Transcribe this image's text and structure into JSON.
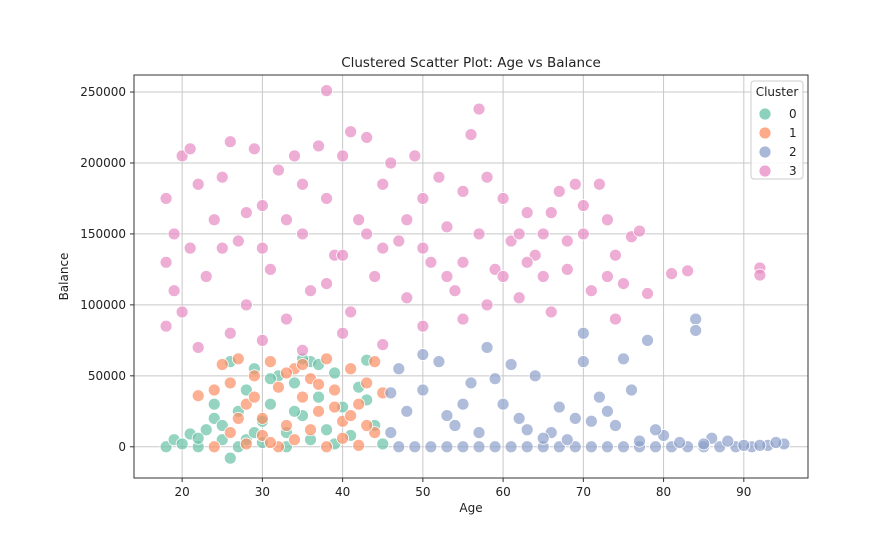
{
  "chart_data": {
    "type": "scatter",
    "title": "Clustered Scatter Plot: Age vs Balance",
    "xlabel": "Age",
    "ylabel": "Balance",
    "xlim": [
      14,
      98
    ],
    "ylim": [
      -22000,
      262000
    ],
    "x_ticks": [
      20,
      30,
      40,
      50,
      60,
      70,
      80,
      90
    ],
    "x_tick_labels": [
      "20",
      "30",
      "40",
      "50",
      "60",
      "70",
      "80",
      "90"
    ],
    "y_ticks": [
      0,
      50000,
      100000,
      150000,
      200000,
      250000
    ],
    "y_tick_labels": [
      "0",
      "50000",
      "100000",
      "150000",
      "200000",
      "250000"
    ],
    "grid": true,
    "legend": {
      "title": "Cluster",
      "placement": "top-right",
      "entries": [
        "0",
        "1",
        "2",
        "3"
      ]
    },
    "series": [
      {
        "name": "0",
        "color": "#66c2a5",
        "points": [
          [
            18,
            0
          ],
          [
            19,
            5000
          ],
          [
            20,
            2000
          ],
          [
            21,
            9000
          ],
          [
            22,
            0
          ],
          [
            23,
            12000
          ],
          [
            24,
            20000
          ],
          [
            25,
            15000
          ],
          [
            26,
            60000
          ],
          [
            26,
            -8000
          ],
          [
            27,
            25000
          ],
          [
            28,
            40000
          ],
          [
            28,
            5000
          ],
          [
            29,
            55000
          ],
          [
            30,
            18000
          ],
          [
            31,
            30000
          ],
          [
            32,
            50000
          ],
          [
            33,
            10000
          ],
          [
            34,
            45000
          ],
          [
            35,
            22000
          ],
          [
            36,
            60000
          ],
          [
            37,
            35000
          ],
          [
            38,
            12000
          ],
          [
            39,
            52000
          ],
          [
            40,
            28000
          ],
          [
            41,
            8000
          ],
          [
            42,
            42000
          ],
          [
            43,
            61000
          ],
          [
            44,
            15000
          ],
          [
            25,
            5000
          ],
          [
            27,
            0
          ],
          [
            30,
            3000
          ],
          [
            33,
            0
          ],
          [
            24,
            30000
          ],
          [
            29,
            10000
          ],
          [
            36,
            5000
          ],
          [
            39,
            2000
          ],
          [
            22,
            6000
          ],
          [
            35,
            62000
          ],
          [
            31,
            48000
          ],
          [
            34,
            25000
          ],
          [
            37,
            58000
          ],
          [
            43,
            33000
          ],
          [
            45,
            2000
          ]
        ]
      },
      {
        "name": "1",
        "color": "#fc8d62",
        "points": [
          [
            22,
            36000
          ],
          [
            24,
            40000
          ],
          [
            25,
            58000
          ],
          [
            26,
            45000
          ],
          [
            27,
            62000
          ],
          [
            28,
            30000
          ],
          [
            29,
            50000
          ],
          [
            30,
            20000
          ],
          [
            31,
            60000
          ],
          [
            32,
            42000
          ],
          [
            33,
            15000
          ],
          [
            34,
            55000
          ],
          [
            35,
            35000
          ],
          [
            36,
            48000
          ],
          [
            37,
            25000
          ],
          [
            38,
            62000
          ],
          [
            39,
            40000
          ],
          [
            40,
            18000
          ],
          [
            41,
            55000
          ],
          [
            42,
            30000
          ],
          [
            43,
            45000
          ],
          [
            44,
            60000
          ],
          [
            45,
            38000
          ],
          [
            26,
            10000
          ],
          [
            28,
            2000
          ],
          [
            30,
            8000
          ],
          [
            32,
            0
          ],
          [
            34,
            5000
          ],
          [
            36,
            12000
          ],
          [
            38,
            0
          ],
          [
            40,
            6000
          ],
          [
            42,
            1000
          ],
          [
            44,
            10000
          ],
          [
            29,
            35000
          ],
          [
            33,
            52000
          ],
          [
            37,
            44000
          ],
          [
            41,
            22000
          ],
          [
            27,
            20000
          ],
          [
            35,
            58000
          ],
          [
            39,
            28000
          ],
          [
            43,
            15000
          ],
          [
            24,
            0
          ],
          [
            31,
            3000
          ]
        ]
      },
      {
        "name": "2",
        "color": "#8da0cb",
        "points": [
          [
            47,
            0
          ],
          [
            49,
            0
          ],
          [
            51,
            0
          ],
          [
            53,
            0
          ],
          [
            55,
            0
          ],
          [
            57,
            0
          ],
          [
            59,
            0
          ],
          [
            61,
            0
          ],
          [
            63,
            0
          ],
          [
            65,
            0
          ],
          [
            67,
            0
          ],
          [
            69,
            0
          ],
          [
            71,
            0
          ],
          [
            73,
            0
          ],
          [
            75,
            0
          ],
          [
            77,
            0
          ],
          [
            79,
            0
          ],
          [
            81,
            0
          ],
          [
            83,
            0
          ],
          [
            85,
            0
          ],
          [
            87,
            0
          ],
          [
            89,
            0
          ],
          [
            91,
            0
          ],
          [
            93,
            1000
          ],
          [
            95,
            2000
          ],
          [
            46,
            10000
          ],
          [
            48,
            25000
          ],
          [
            50,
            40000
          ],
          [
            52,
            60000
          ],
          [
            54,
            15000
          ],
          [
            56,
            45000
          ],
          [
            58,
            70000
          ],
          [
            60,
            30000
          ],
          [
            62,
            20000
          ],
          [
            64,
            50000
          ],
          [
            66,
            10000
          ],
          [
            68,
            5000
          ],
          [
            70,
            80000
          ],
          [
            72,
            35000
          ],
          [
            74,
            15000
          ],
          [
            76,
            40000
          ],
          [
            78,
            75000
          ],
          [
            84,
            90000
          ],
          [
            84,
            82000
          ],
          [
            70,
            60000
          ],
          [
            73,
            25000
          ],
          [
            80,
            8000
          ],
          [
            82,
            3000
          ],
          [
            86,
            6000
          ],
          [
            88,
            4000
          ],
          [
            47,
            55000
          ],
          [
            50,
            65000
          ],
          [
            55,
            30000
          ],
          [
            57,
            10000
          ],
          [
            61,
            58000
          ],
          [
            65,
            6000
          ],
          [
            69,
            20000
          ],
          [
            75,
            62000
          ],
          [
            79,
            12000
          ],
          [
            92,
            1000
          ],
          [
            46,
            38000
          ],
          [
            53,
            22000
          ],
          [
            59,
            48000
          ],
          [
            63,
            12000
          ],
          [
            67,
            28000
          ],
          [
            71,
            18000
          ],
          [
            77,
            4000
          ],
          [
            85,
            2000
          ],
          [
            90,
            1000
          ],
          [
            94,
            3000
          ]
        ]
      },
      {
        "name": "3",
        "color": "#e78ac3",
        "points": [
          [
            18,
            175000
          ],
          [
            18,
            130000
          ],
          [
            18,
            85000
          ],
          [
            19,
            110000
          ],
          [
            19,
            150000
          ],
          [
            20,
            205000
          ],
          [
            20,
            95000
          ],
          [
            21,
            210000
          ],
          [
            21,
            140000
          ],
          [
            22,
            185000
          ],
          [
            22,
            70000
          ],
          [
            23,
            120000
          ],
          [
            24,
            160000
          ],
          [
            25,
            190000
          ],
          [
            26,
            215000
          ],
          [
            26,
            80000
          ],
          [
            27,
            145000
          ],
          [
            28,
            100000
          ],
          [
            29,
            210000
          ],
          [
            30,
            170000
          ],
          [
            31,
            125000
          ],
          [
            32,
            195000
          ],
          [
            33,
            90000
          ],
          [
            34,
            205000
          ],
          [
            35,
            150000
          ],
          [
            36,
            110000
          ],
          [
            37,
            212000
          ],
          [
            38,
            251000
          ],
          [
            38,
            175000
          ],
          [
            39,
            135000
          ],
          [
            40,
            205000
          ],
          [
            41,
            222000
          ],
          [
            41,
            95000
          ],
          [
            42,
            160000
          ],
          [
            43,
            218000
          ],
          [
            44,
            120000
          ],
          [
            45,
            185000
          ],
          [
            46,
            200000
          ],
          [
            47,
            145000
          ],
          [
            48,
            105000
          ],
          [
            49,
            205000
          ],
          [
            50,
            175000
          ],
          [
            51,
            130000
          ],
          [
            52,
            190000
          ],
          [
            53,
            155000
          ],
          [
            54,
            110000
          ],
          [
            55,
            180000
          ],
          [
            56,
            220000
          ],
          [
            57,
            238000
          ],
          [
            57,
            150000
          ],
          [
            58,
            190000
          ],
          [
            59,
            125000
          ],
          [
            60,
            175000
          ],
          [
            61,
            145000
          ],
          [
            62,
            105000
          ],
          [
            63,
            165000
          ],
          [
            64,
            135000
          ],
          [
            65,
            150000
          ],
          [
            66,
            95000
          ],
          [
            67,
            180000
          ],
          [
            68,
            125000
          ],
          [
            69,
            185000
          ],
          [
            70,
            150000
          ],
          [
            71,
            110000
          ],
          [
            72,
            185000
          ],
          [
            73,
            160000
          ],
          [
            74,
            135000
          ],
          [
            75,
            115000
          ],
          [
            76,
            148000
          ],
          [
            77,
            152000
          ],
          [
            78,
            108000
          ],
          [
            81,
            122000
          ],
          [
            83,
            124000
          ],
          [
            92,
            126000
          ],
          [
            92,
            121000
          ],
          [
            30,
            75000
          ],
          [
            35,
            68000
          ],
          [
            40,
            80000
          ],
          [
            45,
            72000
          ],
          [
            50,
            85000
          ],
          [
            55,
            90000
          ],
          [
            25,
            140000
          ],
          [
            30,
            140000
          ],
          [
            35,
            185000
          ],
          [
            40,
            135000
          ],
          [
            45,
            140000
          ],
          [
            50,
            140000
          ],
          [
            55,
            130000
          ],
          [
            60,
            120000
          ],
          [
            65,
            120000
          ],
          [
            28,
            165000
          ],
          [
            33,
            160000
          ],
          [
            38,
            115000
          ],
          [
            43,
            150000
          ],
          [
            48,
            160000
          ],
          [
            53,
            120000
          ],
          [
            58,
            100000
          ],
          [
            63,
            130000
          ],
          [
            68,
            145000
          ],
          [
            73,
            120000
          ],
          [
            62,
            150000
          ],
          [
            66,
            165000
          ],
          [
            70,
            170000
          ],
          [
            74,
            90000
          ]
        ]
      }
    ]
  }
}
